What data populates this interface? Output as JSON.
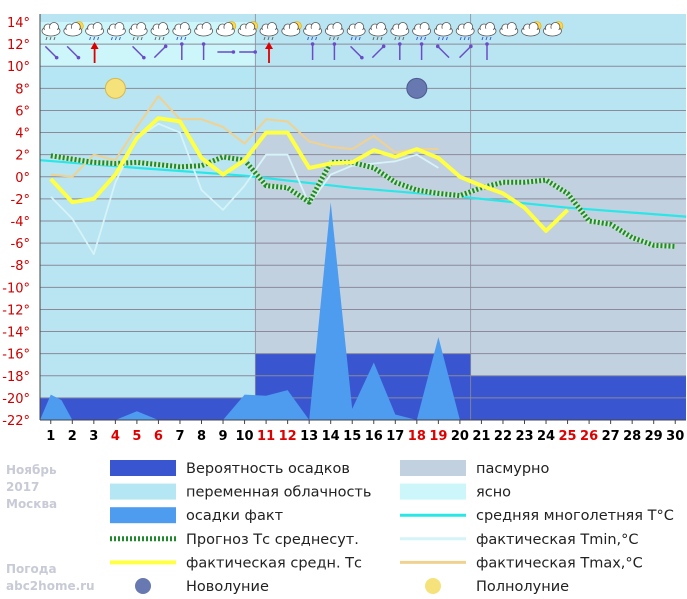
{
  "chart_data": {
    "type": "line",
    "month_label": "Ноябрь",
    "year_label": "2017",
    "city_label": "Москва",
    "site_label_1": "Погода",
    "site_label_2": "abc2home.ru",
    "ylim": [
      -22,
      14
    ],
    "y_ticks": [
      "14°",
      "12°",
      "10°",
      "8°",
      "6°",
      "4°",
      "2°",
      "0°",
      "-2°",
      "-4°",
      "-6°",
      "-8°",
      "-10°",
      "-12°",
      "-14°",
      "-16°",
      "-18°",
      "-20°",
      "-22°"
    ],
    "days": [
      "1",
      "2",
      "3",
      "4",
      "5",
      "6",
      "7",
      "8",
      "9",
      "10",
      "11",
      "12",
      "13",
      "14",
      "15",
      "16",
      "17",
      "18",
      "19",
      "20",
      "21",
      "22",
      "23",
      "24",
      "25",
      "26",
      "27",
      "28",
      "29",
      "30"
    ],
    "weekend_days": [
      4,
      5,
      6,
      11,
      12,
      18,
      19,
      25,
      26
    ],
    "colors": {
      "background_sky": "#b9e4f2",
      "band_clear": "#cdf6fb",
      "band_variable": "#b4e7f3",
      "band_overcast": "#c2d1e0",
      "precip_prob": "#3a55d0",
      "precip_fact": "#4e9cf0",
      "avg_longterm": "#2ae6e6",
      "tmin": "#d6f4f7",
      "tmax": "#f0d290",
      "avg_fact": "#ffff44",
      "forecast": "#1f8a2a",
      "weekday": "#000000",
      "weekend": "#dd0000"
    },
    "sky_bands": [
      {
        "type": "clear",
        "from": 0.5,
        "to": 10.5,
        "ymin": 10,
        "ymax": 14
      },
      {
        "type": "variable",
        "from": 0.5,
        "to": 10.5,
        "ymin": 8,
        "ymax": 10
      },
      {
        "type": "overcast",
        "from": 10.5,
        "to": 20.5,
        "ymin": -22,
        "ymax": 4
      },
      {
        "type": "overcast",
        "from": 20.5,
        "to": 30.5,
        "ymin": -22,
        "ymax": 2
      }
    ],
    "precip_probability": [
      {
        "from": 0.5,
        "to": 10.5,
        "value": -20
      },
      {
        "from": 10.5,
        "to": 20.5,
        "value": -16
      },
      {
        "from": 20.5,
        "to": 30.5,
        "value": -18
      }
    ],
    "series": [
      {
        "name": "avg_longterm",
        "x": [
          0.5,
          5,
          10,
          15,
          20,
          25,
          30.5
        ],
        "values": [
          1.5,
          0.8,
          0.1,
          -1.0,
          -1.8,
          -2.8,
          -3.6
        ]
      },
      {
        "name": "tmin",
        "x": [
          1,
          2,
          3,
          4,
          5,
          6,
          7,
          8,
          9,
          10,
          11,
          12,
          13,
          14,
          15,
          16,
          17,
          18,
          19
        ],
        "values": [
          -1.8,
          -3.8,
          -7.0,
          -0.5,
          3.5,
          4.8,
          4.0,
          -1.2,
          -3.0,
          -0.8,
          2.0,
          2.0,
          -2.5,
          0.2,
          1.0,
          1.2,
          1.4,
          2.0,
          0.8
        ]
      },
      {
        "name": "tmax",
        "x": [
          1,
          2,
          3,
          4,
          5,
          6,
          7,
          8,
          9,
          10,
          11,
          12,
          13,
          14,
          15,
          16,
          17,
          18,
          19
        ],
        "values": [
          0.2,
          0.0,
          2.0,
          1.5,
          4.5,
          7.3,
          5.2,
          5.2,
          4.5,
          3.0,
          5.2,
          5.0,
          3.2,
          2.7,
          2.5,
          3.7,
          2.2,
          2.5,
          2.5
        ]
      },
      {
        "name": "avg_fact",
        "x": [
          1,
          2,
          3,
          4,
          5,
          6,
          7,
          8,
          9,
          10,
          11,
          12,
          13,
          14,
          15,
          16,
          17,
          18,
          19,
          20,
          21,
          22,
          23,
          24,
          25
        ],
        "values": [
          -0.2,
          -2.3,
          -2.0,
          0.2,
          3.5,
          5.3,
          5.0,
          1.7,
          0.2,
          1.5,
          4.0,
          4.0,
          0.8,
          1.2,
          1.3,
          2.4,
          1.8,
          2.5,
          1.7,
          0.0,
          -0.8,
          -1.5,
          -2.8,
          -4.9,
          -3.0
        ]
      },
      {
        "name": "forecast",
        "x": [
          1,
          2,
          3,
          4,
          5,
          6,
          7,
          8,
          9,
          10,
          11,
          12,
          13,
          14,
          15,
          16,
          17,
          18,
          19,
          20,
          21,
          22,
          23,
          24,
          25,
          26,
          27,
          28,
          29,
          30
        ],
        "values": [
          1.9,
          1.6,
          1.3,
          1.2,
          1.3,
          1.1,
          0.9,
          1.0,
          1.8,
          1.5,
          -0.8,
          -1.0,
          -2.3,
          1.3,
          1.3,
          0.8,
          -0.5,
          -1.2,
          -1.5,
          -1.7,
          -1.0,
          -0.5,
          -0.5,
          -0.3,
          -1.5,
          -4.0,
          -4.3,
          -5.5,
          -6.2,
          -6.3
        ]
      }
    ],
    "precip_fact": {
      "x": [
        0.5,
        1,
        1.5,
        2,
        3,
        4,
        5,
        6,
        7,
        8,
        9,
        10,
        11,
        12,
        13,
        14,
        15,
        16,
        17,
        18,
        19,
        20
      ],
      "values": [
        -22,
        -19.7,
        -20.2,
        -22,
        -22,
        -22,
        -21.2,
        -22,
        -22,
        -22,
        -22,
        -19.7,
        -19.8,
        -19.3,
        -22,
        -2.3,
        -21,
        -16.8,
        -21.5,
        -22,
        -14.5,
        -22
      ]
    },
    "weather_icons": [
      "cloud-snow",
      "cloud-sun",
      "cloud-rain",
      "cloud-rain",
      "cloud-snow",
      "cloud-snow",
      "cloud-rain",
      "cloud",
      "cloud-sun",
      "cloud-sun",
      "cloud-snow",
      "cloud-sun",
      "cloud-rain",
      "cloud-snow",
      "cloud-rain",
      "cloud-snow",
      "cloud-snow",
      "cloud-rain",
      "cloud-rain",
      "cloud-rain",
      "cloud-rain",
      "cloud",
      "cloud-sun",
      "cloud-sun"
    ],
    "wind_dirs": [
      "se",
      "se",
      "n-storm",
      "",
      "se",
      "ne",
      "n",
      "n",
      "e",
      "e",
      "n-storm",
      "",
      "n",
      "n",
      "se",
      "ne",
      "n",
      "n",
      "nw",
      "ne",
      "n"
    ],
    "moon_phases": [
      {
        "type": "full",
        "day": 4
      },
      {
        "type": "new",
        "day": 18
      }
    ],
    "legend": [
      {
        "key": "precip_prob",
        "label": "Вероятность осадков"
      },
      {
        "key": "overcast",
        "label": "пасмурно"
      },
      {
        "key": "variable",
        "label": "переменная облачность"
      },
      {
        "key": "clear",
        "label": "ясно"
      },
      {
        "key": "precip_fact",
        "label": "осадки факт"
      },
      {
        "key": "avg_longterm",
        "label": "средняя многолетняя T°С"
      },
      {
        "key": "forecast",
        "label": "Прогноз Тс среднесут."
      },
      {
        "key": "tmin",
        "label": "фактическая Tmin,°С"
      },
      {
        "key": "avg_fact",
        "label": "фактическая средн. Тс"
      },
      {
        "key": "tmax",
        "label": "фактическая Tmax,°С"
      },
      {
        "key": "new_moon",
        "label": "Новолуние"
      },
      {
        "key": "full_moon",
        "label": "Полнолуние"
      }
    ]
  }
}
